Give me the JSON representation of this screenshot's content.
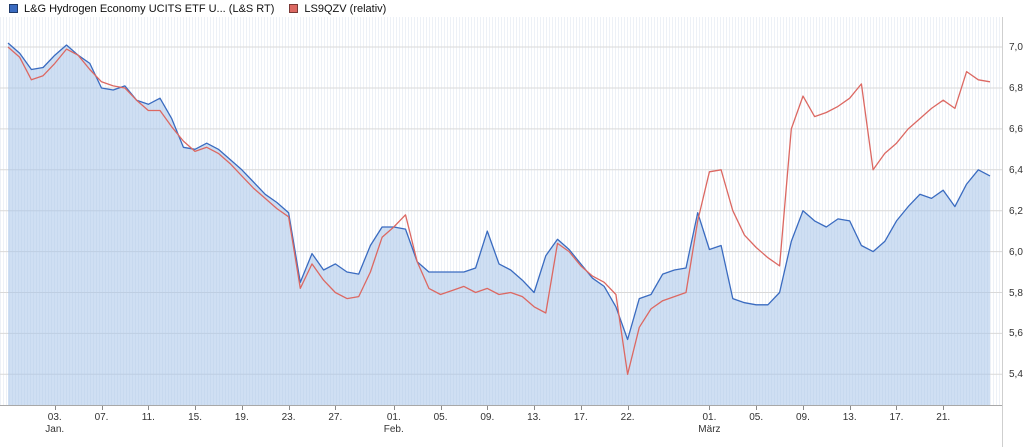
{
  "legend": {
    "series1": {
      "label": "L&G Hydrogen Economy UCITS ETF U... (L&S RT)",
      "color": "#3a6bc0"
    },
    "series2": {
      "label": "LS9QZV (relativ)",
      "color": "#dc6862"
    }
  },
  "chart_data": {
    "type": "line",
    "title": "",
    "xlabel": "",
    "ylabel": "",
    "x_unit": "calendar days, late Dec through late March",
    "ylim": [
      5.25,
      7.23
    ],
    "grid": true,
    "grid_color": "#d9d9d9",
    "legend_position": "top-left",
    "y_ticks": [
      {
        "v": 7.0,
        "label": "7,0"
      },
      {
        "v": 6.8,
        "label": "6,8"
      },
      {
        "v": 6.6,
        "label": "6,6"
      },
      {
        "v": 6.4,
        "label": "6,4"
      },
      {
        "v": 6.2,
        "label": "6,2"
      },
      {
        "v": 6.0,
        "label": "6,0"
      },
      {
        "v": 5.8,
        "label": "5,8"
      },
      {
        "v": 5.6,
        "label": "5,6"
      },
      {
        "v": 5.4,
        "label": "5,4"
      }
    ],
    "x_ticks": [
      {
        "i": 4,
        "label": "03.",
        "month": "Jan."
      },
      {
        "i": 8,
        "label": "07."
      },
      {
        "i": 12,
        "label": "11."
      },
      {
        "i": 16,
        "label": "15."
      },
      {
        "i": 20,
        "label": "19."
      },
      {
        "i": 24,
        "label": "23."
      },
      {
        "i": 28,
        "label": "27."
      },
      {
        "i": 33,
        "label": "01.",
        "month": "Feb."
      },
      {
        "i": 37,
        "label": "05."
      },
      {
        "i": 41,
        "label": "09."
      },
      {
        "i": 45,
        "label": "13."
      },
      {
        "i": 49,
        "label": "17."
      },
      {
        "i": 53,
        "label": "22."
      },
      {
        "i": 60,
        "label": "01.",
        "month": "März"
      },
      {
        "i": 64,
        "label": "05."
      },
      {
        "i": 68,
        "label": "09."
      },
      {
        "i": 72,
        "label": "13."
      },
      {
        "i": 76,
        "label": "17."
      },
      {
        "i": 80,
        "label": "21."
      }
    ],
    "series": [
      {
        "name": "L&G Hydrogen Economy UCITS ETF U... (L&S RT)",
        "color": "#3a6bc0",
        "fill": true,
        "fill_color": "rgba(168,197,233,0.55)",
        "values": [
          7.02,
          6.97,
          6.89,
          6.9,
          6.96,
          7.01,
          6.96,
          6.92,
          6.8,
          6.79,
          6.81,
          6.74,
          6.72,
          6.75,
          6.65,
          6.51,
          6.5,
          6.53,
          6.5,
          6.45,
          6.4,
          6.34,
          6.28,
          6.24,
          6.19,
          5.85,
          5.99,
          5.91,
          5.94,
          5.9,
          5.89,
          6.03,
          6.12,
          6.12,
          6.11,
          5.95,
          5.9,
          5.9,
          5.9,
          5.9,
          5.92,
          6.1,
          5.94,
          5.91,
          5.86,
          5.8,
          5.98,
          6.06,
          6.01,
          5.94,
          5.87,
          5.83,
          5.73,
          5.57,
          5.77,
          5.79,
          5.89,
          5.91,
          5.92,
          6.19,
          6.01,
          6.03,
          5.77,
          5.75,
          5.74,
          5.74,
          5.8,
          6.05,
          6.2,
          6.15,
          6.12,
          6.16,
          6.15,
          6.03,
          6.0,
          6.05,
          6.15,
          6.22,
          6.28,
          6.26,
          6.3,
          6.22,
          6.33,
          6.4,
          6.37
        ]
      },
      {
        "name": "LS9QZV (relativ)",
        "color": "#dc6862",
        "fill": false,
        "fill_color": "none",
        "values": [
          7.0,
          6.95,
          6.84,
          6.86,
          6.92,
          6.99,
          6.96,
          6.89,
          6.83,
          6.81,
          6.8,
          6.74,
          6.69,
          6.69,
          6.61,
          6.54,
          6.49,
          6.51,
          6.48,
          6.43,
          6.37,
          6.31,
          6.26,
          6.21,
          6.17,
          5.82,
          5.94,
          5.86,
          5.8,
          5.77,
          5.78,
          5.9,
          6.07,
          6.12,
          6.18,
          5.95,
          5.82,
          5.79,
          5.81,
          5.83,
          5.8,
          5.82,
          5.79,
          5.8,
          5.78,
          5.73,
          5.7,
          6.04,
          6.0,
          5.93,
          5.88,
          5.85,
          5.79,
          5.4,
          5.63,
          5.72,
          5.76,
          5.78,
          5.8,
          6.15,
          6.39,
          6.4,
          6.2,
          6.08,
          6.02,
          5.97,
          5.93,
          6.6,
          6.76,
          6.66,
          6.68,
          6.71,
          6.75,
          6.82,
          6.4,
          6.48,
          6.53,
          6.6,
          6.65,
          6.7,
          6.74,
          6.7,
          6.88,
          6.84,
          6.83
        ]
      }
    ]
  }
}
